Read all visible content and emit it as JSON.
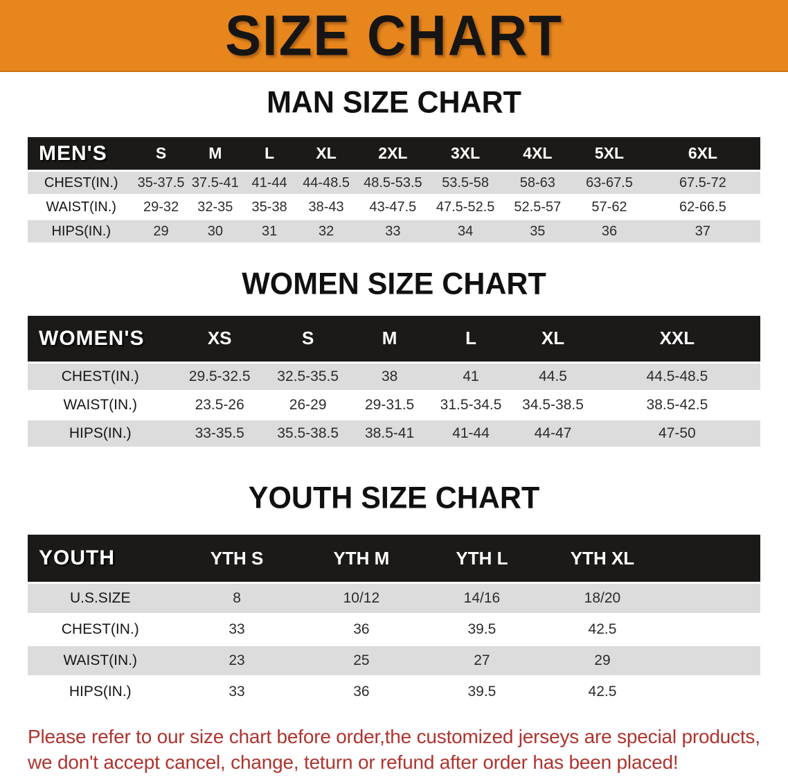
{
  "colors": {
    "accent_orange": "#E8861E",
    "table_header_bg": "#1B1A18",
    "row_stripe": "#DCDCDC",
    "disclaimer_red": "#AE332E"
  },
  "banner": {
    "title": "SIZE CHART"
  },
  "men": {
    "heading": "MAN SIZE CHART",
    "group_label": "MEN'S",
    "columns": [
      "S",
      "M",
      "L",
      "XL",
      "2XL",
      "3XL",
      "4XL",
      "5XL",
      "6XL"
    ],
    "rows": [
      {
        "label": "CHEST(IN.)",
        "values": [
          "35-37.5",
          "37.5-41",
          "41-44",
          "44-48.5",
          "48.5-53.5",
          "53.5-58",
          "58-63",
          "63-67.5",
          "67.5-72"
        ]
      },
      {
        "label": "WAIST(IN.)",
        "values": [
          "29-32",
          "32-35",
          "35-38",
          "38-43",
          "43-47.5",
          "47.5-52.5",
          "52.5-57",
          "57-62",
          "62-66.5"
        ]
      },
      {
        "label": "HIPS(IN.)",
        "values": [
          "29",
          "30",
          "31",
          "32",
          "33",
          "34",
          "35",
          "36",
          "37"
        ]
      }
    ]
  },
  "women": {
    "heading": "WOMEN SIZE CHART",
    "group_label": "WOMEN'S",
    "columns": [
      "XS",
      "S",
      "M",
      "L",
      "XL",
      "XXL"
    ],
    "rows": [
      {
        "label": "CHEST(IN.)",
        "values": [
          "29.5-32.5",
          "32.5-35.5",
          "38",
          "41",
          "44.5",
          "44.5-48.5"
        ]
      },
      {
        "label": "WAIST(IN.)",
        "values": [
          "23.5-26",
          "26-29",
          "29-31.5",
          "31.5-34.5",
          "34.5-38.5",
          "38.5-42.5"
        ]
      },
      {
        "label": "HIPS(IN.)",
        "values": [
          "33-35.5",
          "35.5-38.5",
          "38.5-41",
          "41-44",
          "44-47",
          "47-50"
        ]
      }
    ]
  },
  "youth": {
    "heading": "YOUTH SIZE CHART",
    "group_label": "YOUTH",
    "columns": [
      "YTH S",
      "YTH M",
      "YTH L",
      "YTH XL"
    ],
    "rows": [
      {
        "label": "U.S.SIZE",
        "values": [
          "8",
          "10/12",
          "14/16",
          "18/20"
        ]
      },
      {
        "label": "CHEST(IN.)",
        "values": [
          "33",
          "36",
          "39.5",
          "42.5"
        ]
      },
      {
        "label": "WAIST(IN.)",
        "values": [
          "23",
          "25",
          "27",
          "29"
        ]
      },
      {
        "label": "HIPS(IN.)",
        "values": [
          "33",
          "36",
          "39.5",
          "42.5"
        ]
      }
    ]
  },
  "disclaimer": {
    "lines": [
      "Please refer to our size chart before order,the customized jerseys are special products,",
      "we don't accept cancel, change, teturn or refund after order has been placed!"
    ]
  }
}
